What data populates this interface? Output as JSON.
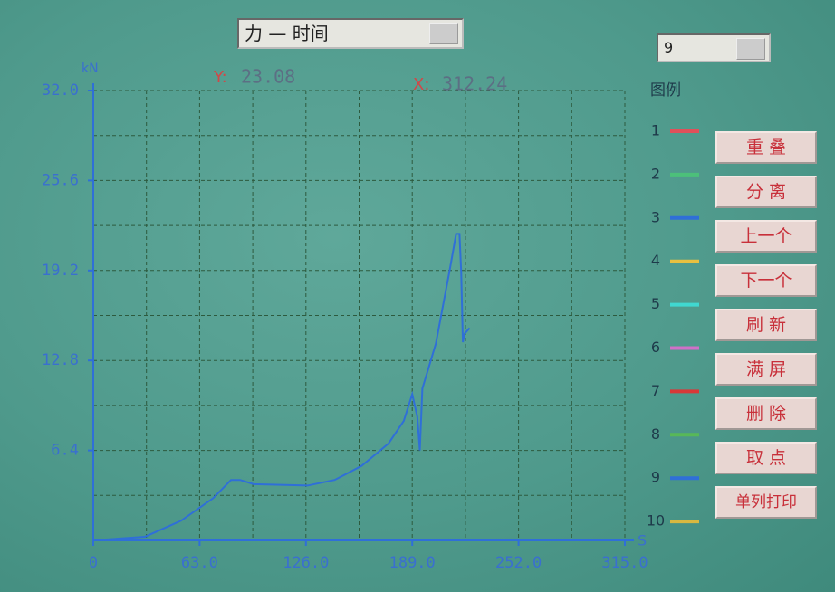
{
  "controls": {
    "mode": "力 — 时间",
    "selected": "9"
  },
  "readout": {
    "y_label": "Y:",
    "y_value": "23.08",
    "x_label": "X:",
    "x_value": "312.24"
  },
  "legend": {
    "title": "图例",
    "items": [
      {
        "label": "1",
        "color": "#e0505a"
      },
      {
        "label": "2",
        "color": "#4cc07a"
      },
      {
        "label": "3",
        "color": "#2f6fd8"
      },
      {
        "label": "4",
        "color": "#e8c040"
      },
      {
        "label": "5",
        "color": "#40d8d0"
      },
      {
        "label": "6",
        "color": "#d070c8"
      },
      {
        "label": "7",
        "color": "#d83838"
      },
      {
        "label": "8",
        "color": "#58b858"
      },
      {
        "label": "9",
        "color": "#2f6fd8"
      },
      {
        "label": "10",
        "color": "#d8b840"
      }
    ]
  },
  "buttons": [
    "重 叠",
    "分 离",
    "上一个",
    "下一个",
    "刷 新",
    "满 屏",
    "删 除",
    "取 点",
    "单列打印"
  ],
  "chart_data": {
    "type": "line",
    "y_label": "kN",
    "x_label": "S",
    "xlim": [
      0,
      315
    ],
    "ylim": [
      0,
      32
    ],
    "xticks": [
      0,
      {
        "value": 63,
        "label": "63.0"
      },
      {
        "value": 126,
        "label": "126.0"
      },
      {
        "value": 189,
        "label": "189.0"
      },
      {
        "value": 252,
        "label": "252.0"
      },
      {
        "value": 315,
        "label": "315.0"
      }
    ],
    "yticks": [
      6.4,
      12.8,
      19.2,
      25.6,
      {
        "value": 32,
        "label": "32.0"
      }
    ],
    "xgrid": [
      31.5,
      63,
      94.5,
      126,
      157.5,
      189,
      220.5,
      252,
      283.5,
      315
    ],
    "ygrid": [
      3.2,
      6.4,
      9.6,
      12.8,
      16,
      19.2,
      22.4,
      25.6,
      28.8,
      32
    ],
    "grid": true,
    "x": [
      0,
      30.6,
      52,
      71,
      81.6,
      87,
      95,
      127,
      143,
      159,
      175,
      184,
      189,
      192,
      193.5,
      195,
      203,
      211,
      215,
      217,
      218,
      219,
      220,
      223
    ],
    "series": [
      {
        "color": "#2f6fd8",
        "values": [
          0,
          0.26,
          1.4,
          3.0,
          4.3,
          4.3,
          4.0,
          3.9,
          4.3,
          5.3,
          6.9,
          8.5,
          10.4,
          8.8,
          6.4,
          10.8,
          14.0,
          19.1,
          21.8,
          21.8,
          19.1,
          14.1,
          14.7,
          15.1
        ]
      }
    ]
  }
}
